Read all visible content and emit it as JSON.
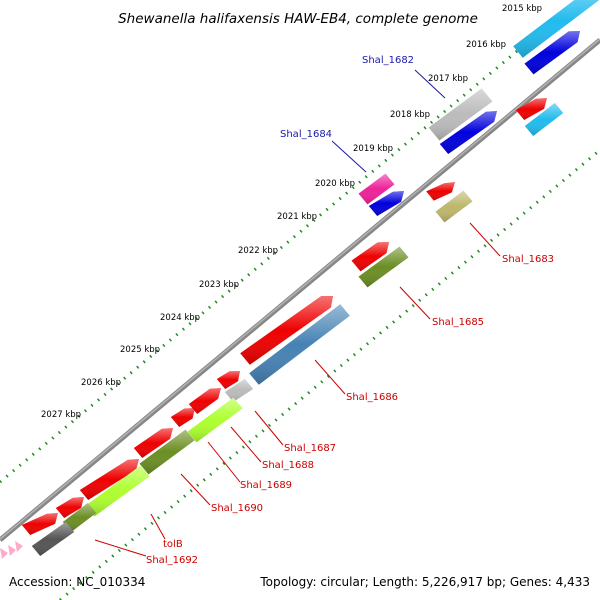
{
  "title": "Shewanella halifaxensis HAW-EB4, complete genome",
  "footer": {
    "accession": "Accession: NC_010334",
    "topology": "Topology: circular; Length: 5,226,917 bp; Genes: 4,433"
  },
  "ticks": [
    "2015 kbp",
    "2016 kbp",
    "2017 kbp",
    "2018 kbp",
    "2019 kbp",
    "2020 kbp",
    "2021 kbp",
    "2022 kbp",
    "2023 kbp",
    "2024 kbp",
    "2025 kbp",
    "2026 kbp",
    "2027 kbp"
  ],
  "gene_labels": {
    "shal_1682": "Shal_1682",
    "shal_1683": "Shal_1683",
    "shal_1684": "Shal_1684",
    "shal_1685": "Shal_1685",
    "shal_1686": "Shal_1686",
    "shal_1687": "Shal_1687",
    "shal_1688": "Shal_1688",
    "shal_1689": "Shal_1689",
    "shal_1690": "Shal_1690",
    "tolB": "tolB",
    "shal_1692": "Shal_1692"
  },
  "colors": {
    "forward_cds": "#ee0000",
    "reverse_blue": "#0000dd",
    "cyan": "#22bbee",
    "grey": "#bbbbbb",
    "magenta": "#ee2299",
    "olive": "#6b8e23",
    "khaki": "#bdb76b",
    "steel": "#4682b4",
    "lime": "#adff2f",
    "dark_grey": "#555555",
    "pink": "#ffaacc",
    "backbone": "#888888",
    "tick": "#228b22",
    "red_label": "#cc0000",
    "blue_label": "#1a1aaa"
  }
}
